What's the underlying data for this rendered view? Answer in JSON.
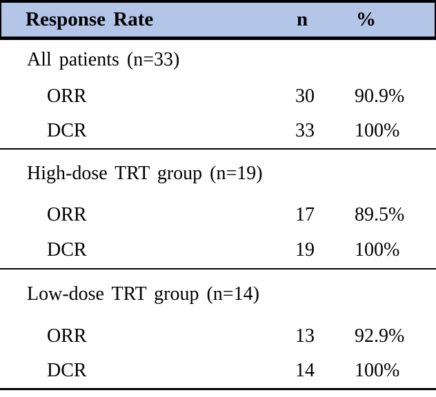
{
  "table": {
    "headers": {
      "label": "Response Rate",
      "n": "n",
      "pct": "%"
    },
    "sections": [
      {
        "title": "All patients (n=33)",
        "rows": [
          {
            "label": "ORR",
            "n": "30",
            "pct": "90.9%"
          },
          {
            "label": "DCR",
            "n": "33",
            "pct": "100%"
          }
        ]
      },
      {
        "title": "High-dose TRT group (n=19)",
        "rows": [
          {
            "label": "ORR",
            "n": "17",
            "pct": "89.5%"
          },
          {
            "label": "DCR",
            "n": "19",
            "pct": "100%"
          }
        ]
      },
      {
        "title": "Low-dose TRT group (n=14)",
        "rows": [
          {
            "label": "ORR",
            "n": "13",
            "pct": "92.9%"
          },
          {
            "label": "DCR",
            "n": "14",
            "pct": "100%"
          }
        ]
      }
    ],
    "colors": {
      "header_bg": "#b4c6e7",
      "border": "#000000",
      "text": "#000000",
      "background": "#ffffff"
    }
  }
}
